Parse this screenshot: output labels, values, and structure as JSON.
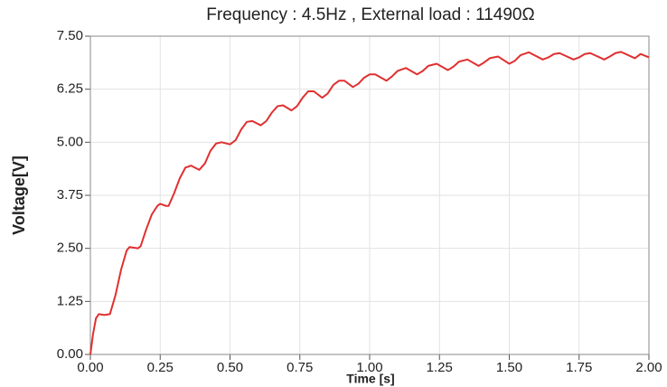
{
  "chart_data": {
    "type": "line",
    "title": "Frequency : 4.5Hz , External load : 11490Ω",
    "xlabel": "Time [s]",
    "ylabel": "Voltage[V]",
    "x": [
      0,
      0.01,
      0.02,
      0.03,
      0.05,
      0.07,
      0.09,
      0.11,
      0.13,
      0.14,
      0.17,
      0.18,
      0.2,
      0.22,
      0.24,
      0.25,
      0.27,
      0.28,
      0.3,
      0.32,
      0.34,
      0.36,
      0.39,
      0.41,
      0.43,
      0.45,
      0.47,
      0.5,
      0.52,
      0.54,
      0.56,
      0.58,
      0.61,
      0.63,
      0.65,
      0.67,
      0.69,
      0.72,
      0.74,
      0.76,
      0.78,
      0.8,
      0.83,
      0.85,
      0.87,
      0.89,
      0.91,
      0.94,
      0.96,
      0.98,
      1.0,
      1.02,
      1.06,
      1.08,
      1.1,
      1.13,
      1.17,
      1.19,
      1.21,
      1.24,
      1.28,
      1.3,
      1.32,
      1.35,
      1.39,
      1.41,
      1.43,
      1.46,
      1.5,
      1.52,
      1.54,
      1.57,
      1.62,
      1.64,
      1.66,
      1.68,
      1.73,
      1.75,
      1.77,
      1.79,
      1.84,
      1.86,
      1.88,
      1.9,
      1.95,
      1.97,
      2.0
    ],
    "series": [
      {
        "name": "Voltage",
        "color": "#e03030",
        "values": [
          0,
          0.5,
          0.85,
          0.95,
          0.93,
          0.95,
          1.4,
          2.0,
          2.45,
          2.53,
          2.5,
          2.55,
          2.95,
          3.3,
          3.5,
          3.55,
          3.5,
          3.5,
          3.8,
          4.15,
          4.4,
          4.45,
          4.35,
          4.5,
          4.8,
          4.97,
          5.0,
          4.95,
          5.05,
          5.3,
          5.48,
          5.5,
          5.4,
          5.5,
          5.7,
          5.85,
          5.87,
          5.75,
          5.85,
          6.05,
          6.2,
          6.2,
          6.05,
          6.15,
          6.35,
          6.45,
          6.45,
          6.3,
          6.38,
          6.52,
          6.6,
          6.6,
          6.45,
          6.55,
          6.68,
          6.75,
          6.6,
          6.68,
          6.8,
          6.85,
          6.7,
          6.78,
          6.9,
          6.95,
          6.8,
          6.88,
          6.98,
          7.02,
          6.85,
          6.92,
          7.05,
          7.12,
          6.95,
          7.0,
          7.08,
          7.1,
          6.95,
          7.0,
          7.08,
          7.1,
          6.95,
          7.02,
          7.1,
          7.13,
          6.98,
          7.08,
          7.0
        ]
      }
    ],
    "xlim": [
      0,
      2
    ],
    "xticks": [
      {
        "value": 0,
        "label": "0.00"
      },
      {
        "value": 0.25,
        "label": "0.25"
      },
      {
        "value": 0.5,
        "label": "0.50"
      },
      {
        "value": 0.75,
        "label": "0.75"
      },
      {
        "value": 1,
        "label": "1.00"
      },
      {
        "value": 1.25,
        "label": "1.25"
      },
      {
        "value": 1.5,
        "label": "1.50"
      },
      {
        "value": 1.75,
        "label": "1.75"
      },
      {
        "value": 2,
        "label": "2.00"
      }
    ],
    "ylim": [
      0,
      7.5
    ],
    "yticks": [
      {
        "value": 0,
        "label": "0.00"
      },
      {
        "value": 1.25,
        "label": "1.25"
      },
      {
        "value": 2.5,
        "label": "2.50"
      },
      {
        "value": 3.75,
        "label": "3.75"
      },
      {
        "value": 5,
        "label": "5.00"
      },
      {
        "value": 6.25,
        "label": "6.25"
      },
      {
        "value": 7.5,
        "label": "7.50"
      }
    ],
    "grid": true
  }
}
